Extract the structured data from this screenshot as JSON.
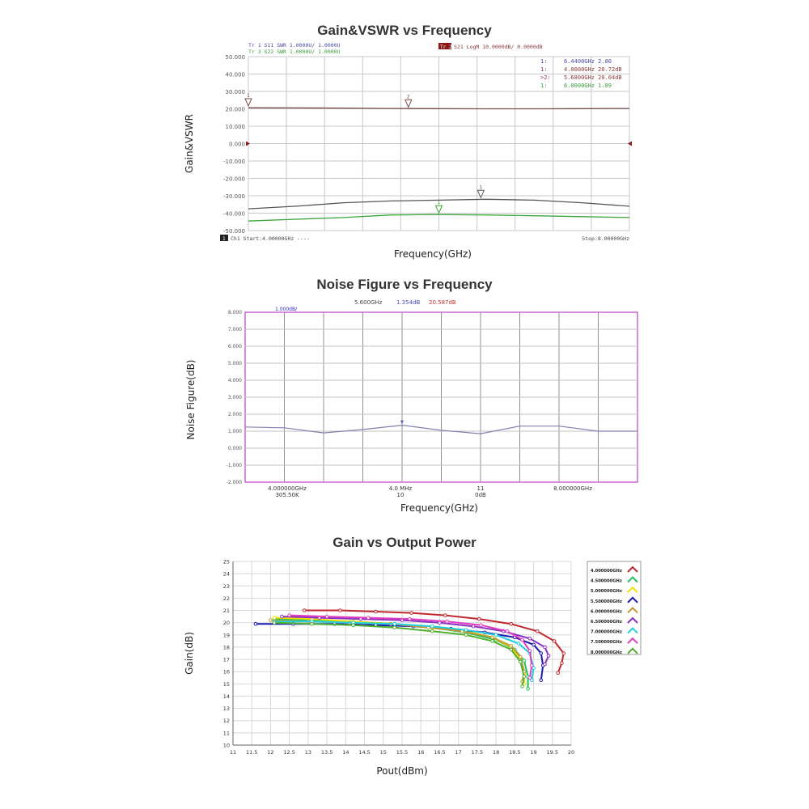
{
  "chart_data": [
    {
      "type": "line",
      "title": "Gain&VSWR vs Frequency",
      "xlabel": "Frequency(GHz)",
      "ylabel": "Gain&VSWR",
      "ylim": [
        -50,
        50
      ],
      "xlim": [
        4.0,
        8.0
      ],
      "yticks": [
        "50.000",
        "40.000",
        "30.000",
        "20.000",
        "10.000",
        "0.000",
        "-10.000",
        "-20.000",
        "-30.000",
        "-40.000",
        "-50.000"
      ],
      "header_lines": [
        "Tr 1  S11 SWR 1.0000U/ 1.0000U",
        "Tr 3  S22 SWR 1.0000U/ 1.0000U"
      ],
      "header_right": "S21 LogM 10.0000dB/ 0.0000dB",
      "header_right_tag": "Tr 2",
      "marker_table": [
        {
          "label": "1:",
          "value": "6.4400GHz  2.80",
          "color": "#4a4aa8"
        },
        {
          "label": "1:",
          "value": "4.0000GHz  20.72dB",
          "color": "#8a3a3a"
        },
        {
          "label": ">2:",
          "value": "5.6800GHz  20.04dB",
          "color": "#8a3a3a"
        },
        {
          "label": "1:",
          "value": "6.0000GHz  1.89",
          "color": "#3a9a3a"
        }
      ],
      "footer_left": "Ch1  Start:4.00000GHz  ----",
      "footer_tag": "1",
      "footer_right": "Stop:8.00000GHz",
      "grid": true,
      "series": [
        {
          "color": "#7a4a4a",
          "x": [
            4.0,
            4.5,
            5.0,
            5.5,
            6.0,
            6.5,
            7.0,
            7.5,
            8.0
          ],
          "y": [
            20.6,
            20.5,
            20.4,
            20.2,
            20.1,
            20.0,
            20.0,
            20.1,
            20.2
          ]
        },
        {
          "color": "#555555",
          "x": [
            4.0,
            4.5,
            5.0,
            5.5,
            6.0,
            6.5,
            7.0,
            7.5,
            8.0
          ],
          "y": [
            -37.5,
            -36.0,
            -34.0,
            -33.0,
            -32.5,
            -32.0,
            -32.5,
            -34.0,
            -36.0
          ]
        },
        {
          "color": "#3aa43a",
          "x": [
            4.0,
            4.5,
            5.0,
            5.5,
            6.0,
            6.5,
            7.0,
            7.5,
            8.0
          ],
          "y": [
            -44.5,
            -43.5,
            -42.5,
            -41.0,
            -40.8,
            -41.0,
            -41.5,
            -42.0,
            -42.5
          ]
        }
      ],
      "markers": [
        {
          "x": 4.0,
          "y": 20.72,
          "label": "1",
          "color": "#7a4a4a"
        },
        {
          "x": 5.68,
          "y": 20.04,
          "label": "2",
          "color": "#7a4a4a"
        },
        {
          "x": 6.44,
          "y": -32.0,
          "label": "1",
          "color": "#555555"
        },
        {
          "x": 6.0,
          "y": -40.8,
          "label": "1",
          "color": "#3aa43a"
        }
      ]
    },
    {
      "type": "line",
      "title": "Noise Figure vs Frequency",
      "xlabel": "Frequency(GHz)",
      "ylabel": "Noise Figure(dB)",
      "ylim": [
        -2,
        8
      ],
      "xlim": [
        4.0,
        8.0
      ],
      "yticks": [
        "8.000",
        "7.000",
        "6.000",
        "5.000",
        "4.000",
        "3.000",
        "2.000",
        "1.000",
        "0.000",
        "-1.000",
        "-2.000"
      ],
      "header_freq": "5.600GHz",
      "header_nf": "1.354dB",
      "header_gain": "20.587dB",
      "scale_label": "1.000dB/",
      "bottom_labels": [
        {
          "line1": "4.000000GHz",
          "line2": "305.50K"
        },
        {
          "line1": "4.0  MHz",
          "line2": "10"
        },
        {
          "line1": "11",
          "line2": "0dB"
        },
        {
          "line1": "8.000000GHz",
          "line2": ""
        }
      ],
      "grid": true,
      "series": [
        {
          "color": "#8080b0",
          "x": [
            4.0,
            4.4,
            4.8,
            5.2,
            5.6,
            6.0,
            6.4,
            6.8,
            7.2,
            7.6,
            8.0
          ],
          "y": [
            1.25,
            1.2,
            0.9,
            1.1,
            1.354,
            1.05,
            0.85,
            1.3,
            1.3,
            1.0,
            1.0
          ]
        }
      ],
      "markers": [
        {
          "x": 5.6,
          "y": 1.354,
          "label": "1",
          "color": "#6060c0"
        }
      ]
    },
    {
      "type": "line",
      "title": "Gain vs Output Power",
      "xlabel": "Pout(dBm)",
      "ylabel": "Gain(dB)",
      "xlim": [
        11,
        20
      ],
      "ylim": [
        10,
        25
      ],
      "xticks": [
        "11",
        "11.5",
        "12",
        "12.5",
        "13",
        "13.5",
        "14",
        "14.5",
        "15",
        "15.5",
        "16",
        "16.5",
        "17",
        "17.5",
        "18",
        "18.5",
        "19",
        "19.5",
        "20"
      ],
      "yticks": [
        "25",
        "24",
        "23",
        "22",
        "21",
        "20",
        "19",
        "18",
        "17",
        "16",
        "15",
        "14",
        "13",
        "12",
        "11",
        "10"
      ],
      "grid": true,
      "series": [
        {
          "name": "4.000000GHz",
          "color": "#c0282d",
          "x": [
            12.9,
            13.85,
            14.8,
            15.75,
            16.65,
            17.55,
            18.4,
            19.1,
            19.55,
            19.8,
            19.75,
            19.65
          ],
          "y": [
            21.0,
            21.0,
            20.9,
            20.8,
            20.6,
            20.3,
            19.9,
            19.3,
            18.5,
            17.5,
            16.7,
            15.9
          ]
        },
        {
          "name": "4.500000GHz",
          "color": "#20c060",
          "x": [
            12.1,
            13.1,
            14.2,
            15.3,
            16.3,
            17.2,
            18.0,
            18.5,
            18.75,
            18.85,
            18.85
          ],
          "y": [
            20.3,
            20.2,
            20.1,
            19.9,
            19.6,
            19.2,
            18.6,
            17.8,
            16.9,
            15.6,
            14.6
          ]
        },
        {
          "name": "5.000000GHz",
          "color": "#f0e000",
          "x": [
            12.1,
            13.1,
            14.2,
            15.3,
            16.3,
            17.2,
            17.9,
            18.4,
            18.65,
            18.75,
            18.75
          ],
          "y": [
            20.4,
            20.3,
            20.1,
            19.9,
            19.6,
            19.3,
            18.8,
            18.0,
            17.0,
            15.8,
            15.0
          ]
        },
        {
          "name": "5.500000GHz",
          "color": "#1a1ab0",
          "x": [
            11.6,
            12.6,
            13.7,
            14.8,
            15.8,
            16.8,
            17.7,
            18.5,
            19.0,
            19.2,
            19.25,
            19.2
          ],
          "y": [
            19.9,
            19.9,
            19.9,
            19.8,
            19.7,
            19.5,
            19.2,
            18.8,
            18.2,
            17.5,
            16.5,
            15.3
          ]
        },
        {
          "name": "6.000000GHz",
          "color": "#c09a30",
          "x": [
            12.0,
            13.0,
            14.1,
            15.2,
            16.2,
            17.1,
            17.9,
            18.4,
            18.65,
            18.75,
            18.7
          ],
          "y": [
            20.2,
            20.1,
            20.0,
            19.9,
            19.6,
            19.3,
            18.8,
            18.1,
            17.2,
            16.0,
            15.2
          ]
        },
        {
          "name": "6.500000GHz",
          "color": "#8a30c0",
          "x": [
            12.3,
            13.3,
            14.4,
            15.5,
            16.5,
            17.4,
            18.2,
            18.9,
            19.3,
            19.4,
            19.3
          ],
          "y": [
            20.5,
            20.4,
            20.3,
            20.2,
            20.0,
            19.7,
            19.3,
            18.7,
            18.0,
            17.3,
            16.6
          ]
        },
        {
          "name": "7.000000GHz",
          "color": "#20d0e0",
          "x": [
            12.1,
            13.1,
            14.2,
            15.3,
            16.3,
            17.2,
            18.0,
            18.6,
            18.9,
            19.0,
            18.95
          ],
          "y": [
            20.1,
            20.1,
            20.0,
            19.9,
            19.7,
            19.4,
            19.0,
            18.3,
            17.5,
            16.3,
            15.3
          ]
        },
        {
          "name": "7.500000GHz",
          "color": "#e040c0",
          "x": [
            12.5,
            13.5,
            14.6,
            15.7,
            16.7,
            17.6,
            18.3,
            18.7,
            18.9,
            18.95,
            18.9
          ],
          "y": [
            20.6,
            20.5,
            20.4,
            20.3,
            20.1,
            19.8,
            19.3,
            18.6,
            17.7,
            16.5,
            15.5
          ]
        },
        {
          "name": "8.000000GHz",
          "color": "#50b030",
          "x": [
            12.1,
            13.1,
            14.2,
            15.3,
            16.3,
            17.2,
            17.9,
            18.4,
            18.65,
            18.75,
            18.7
          ],
          "y": [
            20.0,
            19.9,
            19.8,
            19.6,
            19.3,
            19.0,
            18.5,
            17.8,
            16.8,
            15.6,
            14.8
          ]
        }
      ]
    }
  ]
}
